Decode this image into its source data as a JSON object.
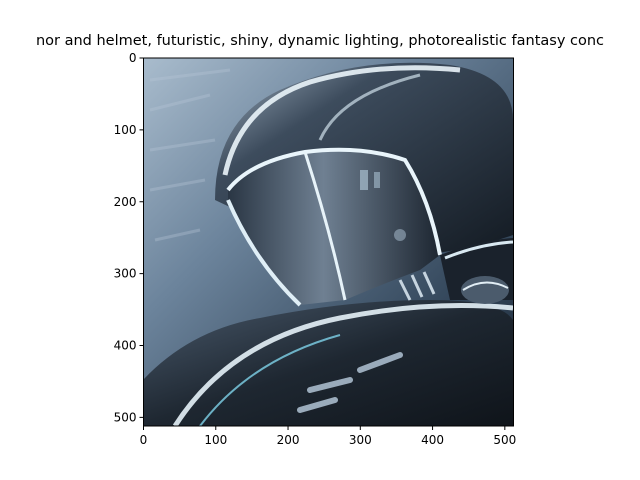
{
  "figure": {
    "title": "nor and helmet, futuristic, shiny, dynamic lighting, photorealistic fantasy conc"
  },
  "image": {
    "subject": "sci-fi helmet and armor, chrome and dark steel, painterly",
    "palette": {
      "background_light": "#8ea3b8",
      "background_dark": "#233243",
      "armor_dark": "#161d26",
      "armor_mid": "#3d4d5f",
      "highlight": "#e8f4fb",
      "cyan_glint": "#7fd3ea"
    }
  },
  "axes": {
    "x_ticks": [
      "0",
      "100",
      "200",
      "300",
      "400",
      "500"
    ],
    "y_ticks": [
      "0",
      "100",
      "200",
      "300",
      "400",
      "500"
    ],
    "xlim": [
      0,
      512
    ],
    "ylim": [
      512,
      0
    ]
  }
}
